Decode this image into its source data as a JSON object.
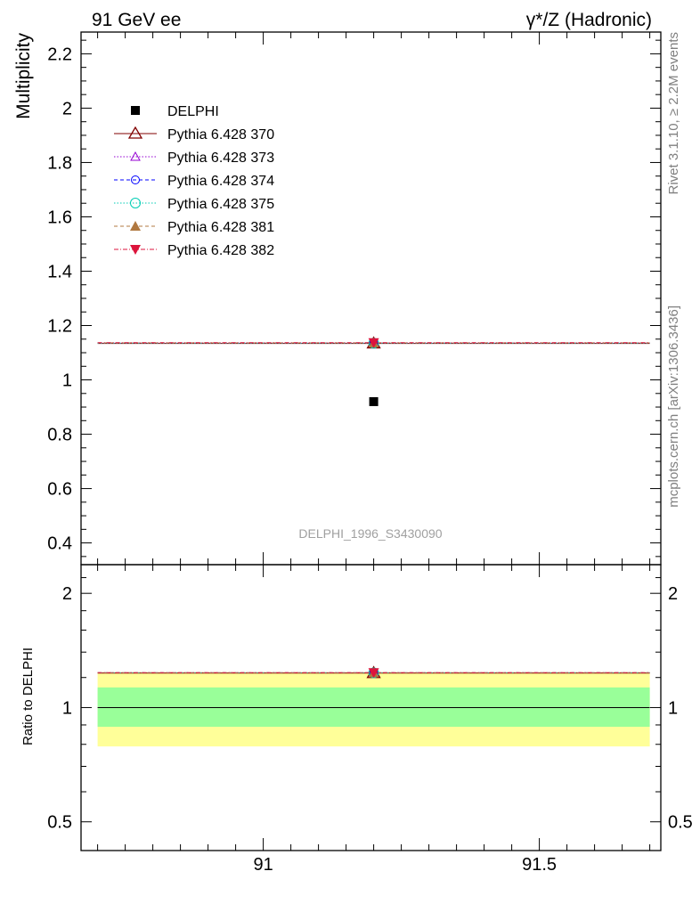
{
  "header": {
    "left": "91 GeV ee",
    "right_gamma": "γ",
    "right_rest": "*/Z (Hadronic)"
  },
  "side_labels": {
    "rivet": "Rivet 3.1.10, ≥ 2.2M events",
    "mcplots": "mcplots.cern.ch [arXiv:1306.3436]"
  },
  "analysis_id": "DELPHI_1996_S3430090",
  "colors": {
    "data": "#000000",
    "band_inner": "#99ff99",
    "band_outer": "#ffff99"
  },
  "chart_data": [
    {
      "type": "scatter",
      "panel": "main",
      "ylabel": "Multiplicity",
      "xlim": [
        90.67,
        91.72
      ],
      "ylim": [
        0.32,
        2.28
      ],
      "yticks": [
        "0.4",
        "0.6",
        "0.8",
        "1",
        "1.2",
        "1.4",
        "1.6",
        "1.8",
        "2",
        "2.2"
      ],
      "legend_placement": "top-left",
      "data": {
        "name": "DELPHI",
        "x": 91.2,
        "y": 0.92,
        "color": "#000000",
        "marker": "square"
      },
      "series": [
        {
          "name": "Pythia 6.428 370",
          "x": [
            90.7,
            91.2,
            91.7
          ],
          "y": [
            1.134,
            1.134,
            1.134
          ],
          "color": "#800000",
          "marker": "triangle-open",
          "dash": "solid"
        },
        {
          "name": "Pythia 6.428 373",
          "x": [
            90.7,
            91.2,
            91.7
          ],
          "y": [
            1.135,
            1.135,
            1.135
          ],
          "color": "#9400d3",
          "marker": "triangle-open-small",
          "dash": "dotted"
        },
        {
          "name": "Pythia 6.428 374",
          "x": [
            90.7,
            91.2,
            91.7
          ],
          "y": [
            1.136,
            1.136,
            1.136
          ],
          "color": "#0000ff",
          "marker": "circle-open",
          "dash": "dashed"
        },
        {
          "name": "Pythia 6.428 375",
          "x": [
            90.7,
            91.2,
            91.7
          ],
          "y": [
            1.135,
            1.135,
            1.135
          ],
          "color": "#00cdb4",
          "marker": "circle-open-large",
          "dash": "dotted"
        },
        {
          "name": "Pythia 6.428 381",
          "x": [
            90.7,
            91.2,
            91.7
          ],
          "y": [
            1.136,
            1.136,
            1.136
          ],
          "color": "#b07840",
          "marker": "triangle-filled",
          "dash": "dashed"
        },
        {
          "name": "Pythia 6.428 382",
          "x": [
            90.7,
            91.2,
            91.7
          ],
          "y": [
            1.137,
            1.137,
            1.137
          ],
          "color": "#dc143c",
          "marker": "triangle-down-filled",
          "dash": "dashdot"
        }
      ]
    },
    {
      "type": "line",
      "panel": "ratio",
      "ylabel": "Ratio to DELPHI",
      "xlabel": "",
      "xlim": [
        90.67,
        91.72
      ],
      "ylim": [
        0.42,
        2.38
      ],
      "log_scale": true,
      "xticks": [
        "91",
        "91.5"
      ],
      "yticks": [
        "0.5",
        "1",
        "2"
      ],
      "reference": 1.0,
      "band_inner": [
        0.89,
        1.13
      ],
      "band_outer": [
        0.79,
        1.24
      ],
      "series": [
        {
          "name": "Pythia 6.428 370",
          "y": 1.233
        },
        {
          "name": "Pythia 6.428 373",
          "y": 1.234
        },
        {
          "name": "Pythia 6.428 374",
          "y": 1.235
        },
        {
          "name": "Pythia 6.428 375",
          "y": 1.234
        },
        {
          "name": "Pythia 6.428 381",
          "y": 1.235
        },
        {
          "name": "Pythia 6.428 382",
          "y": 1.236
        }
      ]
    }
  ]
}
